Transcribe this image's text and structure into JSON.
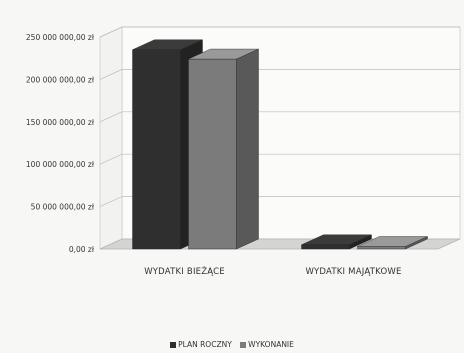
{
  "chart_data": {
    "type": "bar",
    "categories": [
      "WYDATKI BIEŻĄCE",
      "WYDATKI MAJĄTKOWE"
    ],
    "series": [
      {
        "name": "PLAN ROCZNY",
        "values": [
          235000000,
          5000000
        ],
        "color": "#2f2f2f"
      },
      {
        "name": "WYKONANIE",
        "values": [
          224000000,
          3000000
        ],
        "color": "#7b7b7b"
      }
    ],
    "y_ticks": [
      "0,00 zł",
      "50 000 000,00 zł",
      "100 000 000,00 zł",
      "150 000 000,00 zł",
      "200 000 000,00 zł",
      "250 000 000,00 zł"
    ],
    "ylim": [
      0,
      250000000
    ],
    "grid": true,
    "legend_position": "bottom",
    "bar_style": "3d"
  }
}
